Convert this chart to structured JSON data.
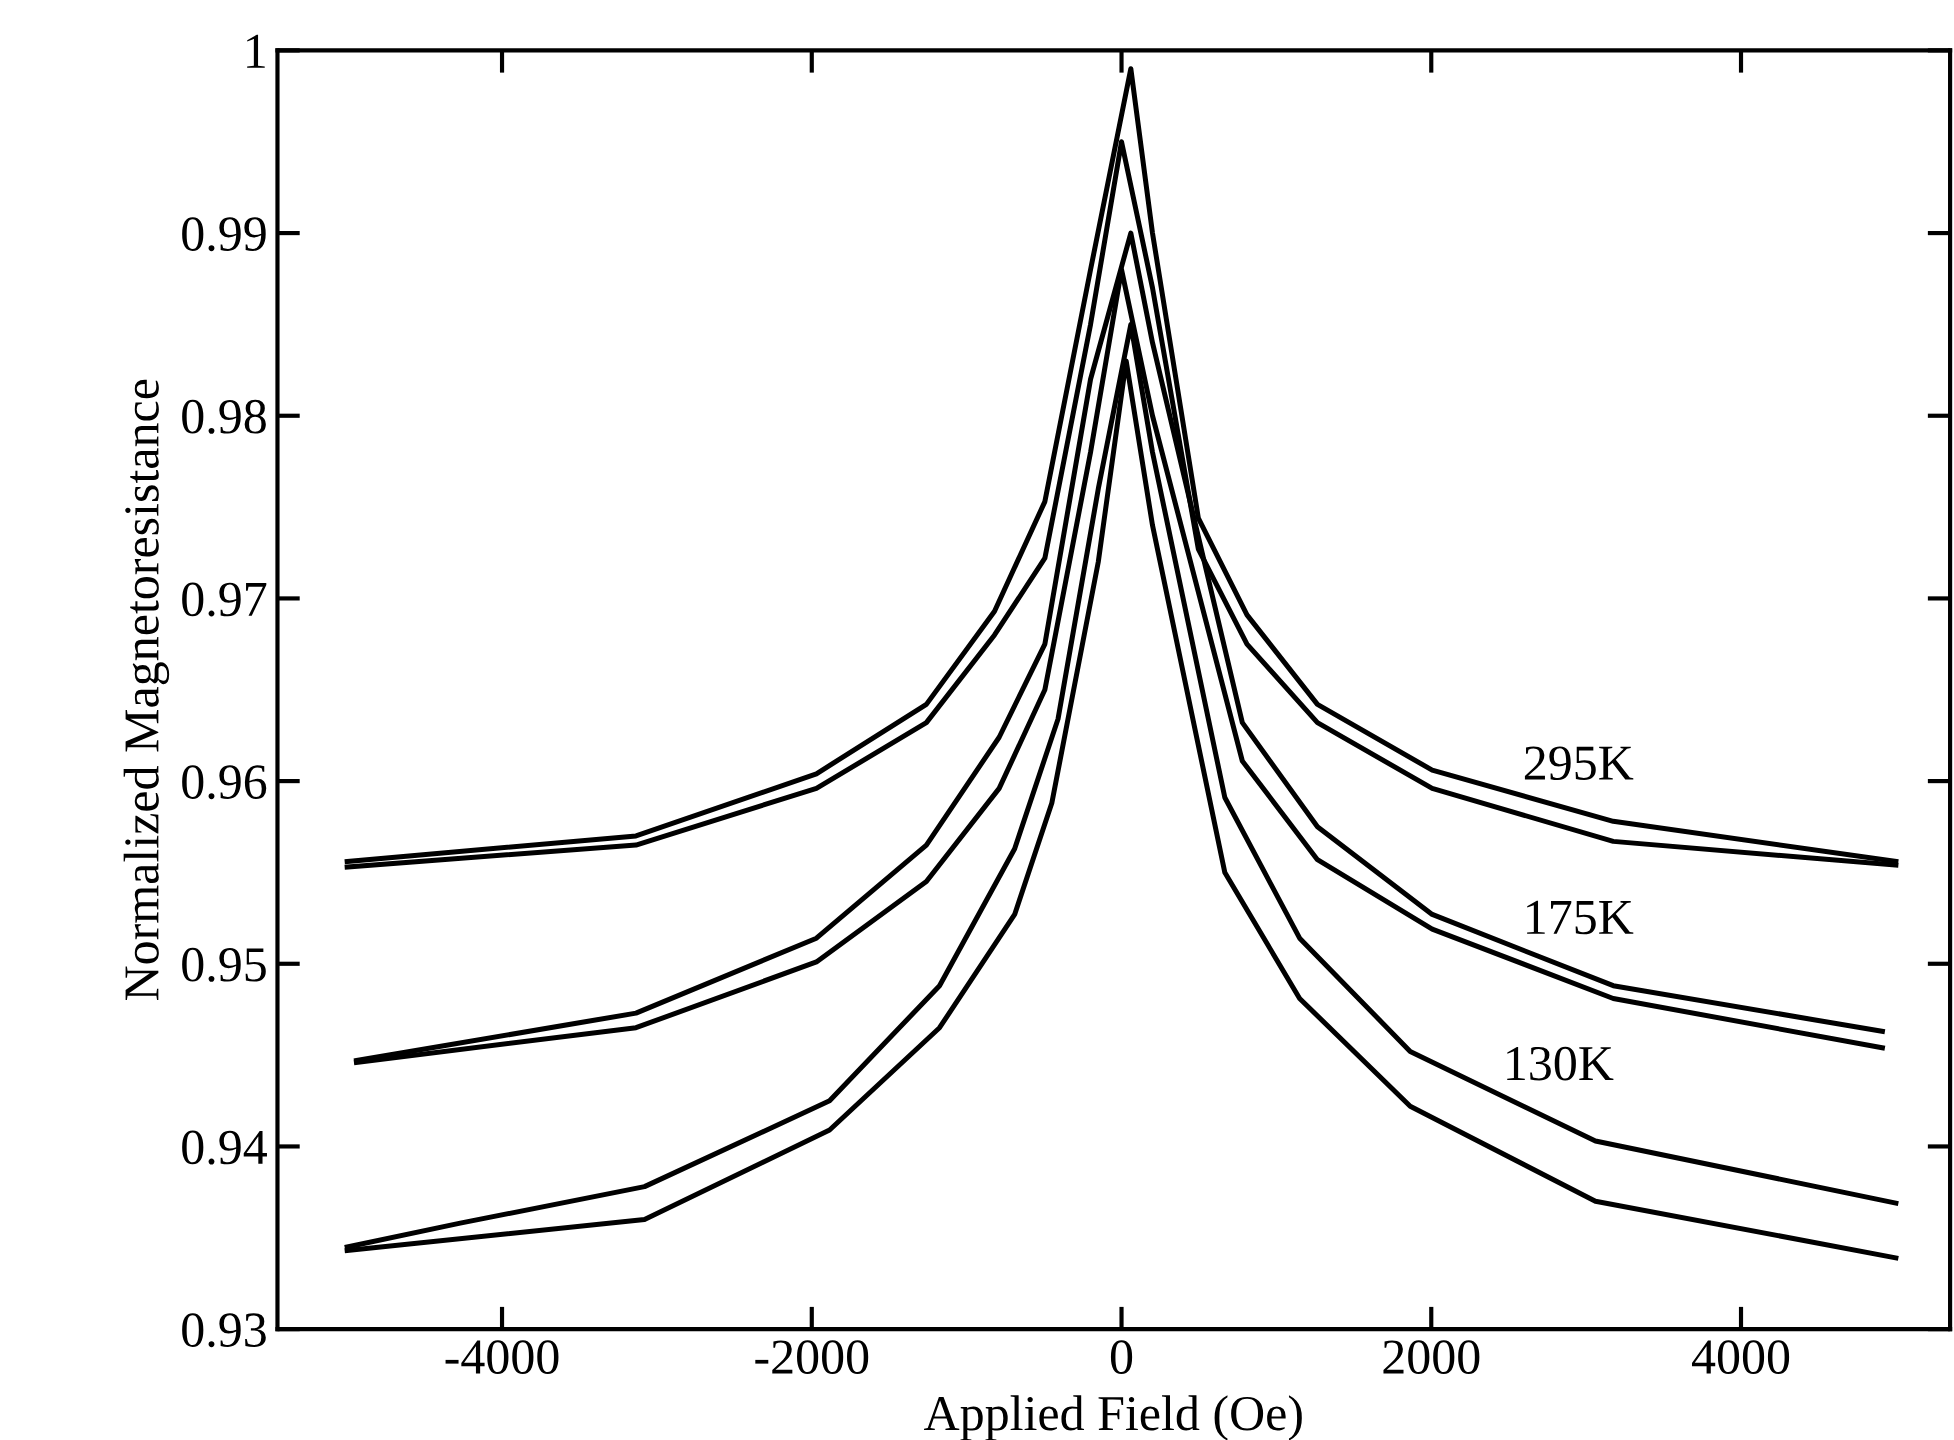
{
  "chart_data": {
    "type": "line",
    "xlabel": "Applied Field (Oe)",
    "ylabel": "Normalized Magnetoresistance",
    "xlim": [
      -5450,
      5350
    ],
    "ylim": [
      0.93,
      1
    ],
    "xticks": [
      -4000,
      -2000,
      0,
      2000,
      4000
    ],
    "yticks": [
      0.93,
      0.94,
      0.95,
      0.96,
      0.97,
      0.98,
      0.99,
      1
    ],
    "grid": false,
    "marker": "none",
    "line_style": "solid",
    "series": [
      {
        "name": "295K",
        "color": "#000000",
        "x": [
          -5000,
          -3135,
          -1970,
          -1260,
          -820,
          -495,
          -200,
          60,
          200,
          496,
          810,
          1265,
          2006,
          3175,
          5000
        ],
        "values": [
          0.9556,
          0.957,
          0.9604,
          0.9642,
          0.9693,
          0.9753,
          0.988,
          0.999,
          0.99,
          0.9744,
          0.9691,
          0.9642,
          0.9606,
          0.9578,
          0.9556
        ]
      },
      {
        "color": "#000000",
        "x": [
          -5000,
          -3135,
          -1970,
          -1260,
          -820,
          -495,
          -200,
          0,
          200,
          496,
          810,
          1265,
          2006,
          3175,
          5000
        ],
        "values": [
          0.9553,
          0.9565,
          0.9596,
          0.9632,
          0.968,
          0.9722,
          0.985,
          0.995,
          0.987,
          0.9727,
          0.9675,
          0.9632,
          0.9596,
          0.9567,
          0.9554
        ]
      },
      {
        "name": "175K",
        "color": "#000000",
        "x": [
          -4940,
          -3135,
          -1970,
          -1260,
          -790,
          -495,
          -200,
          60,
          200,
          780,
          1265,
          2006,
          3175,
          4913
        ],
        "values": [
          0.9447,
          0.9473,
          0.9514,
          0.9565,
          0.9624,
          0.9675,
          0.982,
          0.99,
          0.984,
          0.9632,
          0.9575,
          0.9527,
          0.9488,
          0.9463
        ]
      },
      {
        "color": "#000000",
        "x": [
          -4940,
          -3135,
          -1970,
          -1260,
          -790,
          -495,
          -200,
          0,
          200,
          780,
          1265,
          2006,
          3175,
          4913
        ],
        "values": [
          0.9446,
          0.9465,
          0.9501,
          0.9545,
          0.9596,
          0.965,
          0.978,
          0.988,
          0.98,
          0.9611,
          0.9557,
          0.9519,
          0.9481,
          0.9454
        ]
      },
      {
        "name": "130K",
        "color": "#000000",
        "x": [
          -5000,
          -4270,
          -3080,
          -1885,
          -1175,
          -690,
          -410,
          -150,
          60,
          200,
          667,
          1150,
          1864,
          3060,
          5000
        ],
        "values": [
          0.9345,
          0.9358,
          0.9378,
          0.9425,
          0.9488,
          0.9563,
          0.9634,
          0.976,
          0.985,
          0.978,
          0.9591,
          0.9514,
          0.9452,
          0.9403,
          0.9369
        ]
      },
      {
        "color": "#000000",
        "x": [
          -5000,
          -3080,
          -1885,
          -1175,
          -690,
          -450,
          -150,
          30,
          200,
          667,
          1150,
          1864,
          3060,
          5000
        ],
        "values": [
          0.9343,
          0.936,
          0.9409,
          0.9465,
          0.9527,
          0.9588,
          0.972,
          0.983,
          0.974,
          0.955,
          0.9481,
          0.9422,
          0.937,
          0.9339
        ]
      }
    ]
  }
}
